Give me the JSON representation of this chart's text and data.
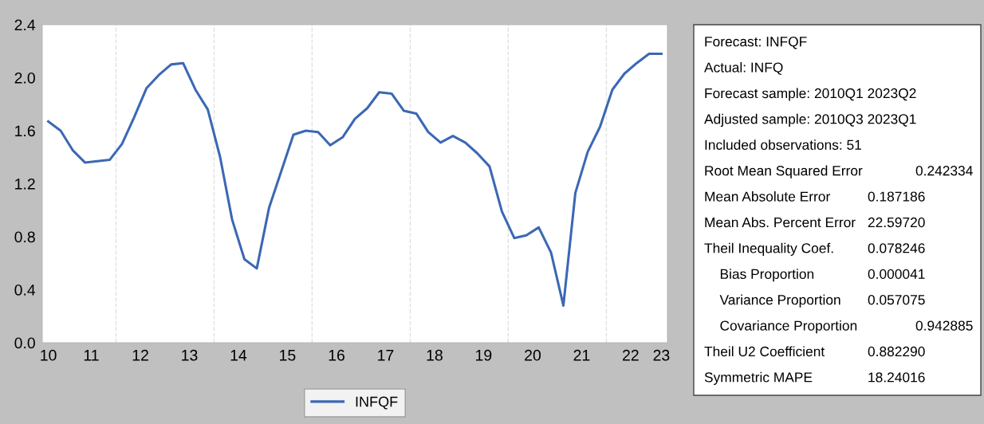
{
  "chart_data": {
    "type": "line",
    "x": [
      "2010-08-15",
      "2010-11-15",
      "2011-02-15",
      "2011-05-15",
      "2011-08-15",
      "2011-11-15",
      "2012-02-15",
      "2012-05-15",
      "2012-08-15",
      "2012-11-15",
      "2013-02-15",
      "2013-05-15",
      "2013-08-15",
      "2013-11-15",
      "2014-02-15",
      "2014-05-15",
      "2014-08-15",
      "2014-11-15",
      "2015-02-15",
      "2015-05-15",
      "2015-08-15",
      "2015-11-15",
      "2016-02-15",
      "2016-05-15",
      "2016-08-15",
      "2016-11-15",
      "2017-02-15",
      "2017-05-15",
      "2017-08-15",
      "2017-11-15",
      "2018-02-15",
      "2018-05-15",
      "2018-08-15",
      "2018-11-15",
      "2019-02-15",
      "2019-05-15",
      "2019-08-15",
      "2019-11-15",
      "2020-02-15",
      "2020-05-15",
      "2020-08-15",
      "2020-11-15",
      "2021-02-15",
      "2021-05-15",
      "2021-08-15",
      "2021-11-15",
      "2022-02-15",
      "2022-05-15",
      "2022-08-15",
      "2022-11-15",
      "2023-02-15"
    ],
    "series": [
      {
        "name": "INFQF",
        "color": "#3c68b4",
        "values": [
          1.67,
          1.6,
          1.45,
          1.36,
          1.37,
          1.38,
          1.5,
          1.7,
          1.92,
          2.02,
          2.1,
          2.11,
          1.91,
          1.76,
          1.4,
          0.93,
          0.63,
          0.56,
          1.02,
          1.29,
          1.57,
          1.6,
          1.59,
          1.49,
          1.55,
          1.69,
          1.77,
          1.89,
          1.88,
          1.75,
          1.73,
          1.59,
          1.51,
          1.56,
          1.51,
          1.43,
          1.33,
          0.99,
          0.79,
          0.81,
          0.87,
          0.68,
          0.28,
          1.13,
          1.44,
          1.63,
          1.91,
          2.03,
          2.11,
          2.18,
          2.18
        ]
      }
    ],
    "xlim": [
      "2010-07-01",
      "2023-04-01"
    ],
    "xticks": [
      {
        "value": "2010-08-15",
        "label": "10"
      },
      {
        "value": "2011-07-01",
        "label": "11"
      },
      {
        "value": "2012-07-01",
        "label": "12"
      },
      {
        "value": "2013-07-01",
        "label": "13"
      },
      {
        "value": "2014-07-01",
        "label": "14"
      },
      {
        "value": "2015-07-01",
        "label": "15"
      },
      {
        "value": "2016-07-01",
        "label": "16"
      },
      {
        "value": "2017-07-01",
        "label": "17"
      },
      {
        "value": "2018-07-01",
        "label": "18"
      },
      {
        "value": "2019-07-01",
        "label": "19"
      },
      {
        "value": "2020-07-01",
        "label": "20"
      },
      {
        "value": "2021-07-01",
        "label": "21"
      },
      {
        "value": "2022-07-01",
        "label": "22"
      },
      {
        "value": "2023-02-15",
        "label": "23"
      }
    ],
    "ylim": [
      0,
      2.4
    ],
    "yticks": [
      {
        "value": 0,
        "label": "0.0"
      },
      {
        "value": 0.4,
        "label": "0.4"
      },
      {
        "value": 0.8,
        "label": "0.8"
      },
      {
        "value": 1.2,
        "label": "1.2"
      },
      {
        "value": 1.6,
        "label": "1.6"
      },
      {
        "value": 2.0,
        "label": "2.0"
      },
      {
        "value": 2.4,
        "label": "2.4"
      }
    ],
    "ref_lines": [
      {
        "axis": "x",
        "value": "2012-01-01",
        "color": "#e0e0e0",
        "line_style": "dashed"
      },
      {
        "axis": "x",
        "value": "2014-01-01",
        "color": "#e0e0e0",
        "line_style": "dashed"
      },
      {
        "axis": "x",
        "value": "2016-01-01",
        "color": "#e0e0e0",
        "line_style": "dashed"
      },
      {
        "axis": "x",
        "value": "2018-01-01",
        "color": "#e0e0e0",
        "line_style": "dashed"
      },
      {
        "axis": "x",
        "value": "2020-01-01",
        "color": "#e0e0e0",
        "line_style": "dashed"
      },
      {
        "axis": "x",
        "value": "2022-01-01",
        "color": "#e0e0e0",
        "line_style": "dashed"
      }
    ],
    "grid": false,
    "legend": "bottom",
    "marker": "none",
    "line_style": "solid",
    "annotations": [
      "Forecast: INFQF",
      "Actual: INFQ",
      "Forecast sample: 2010Q1 2023Q2",
      "Adjusted sample: 2010Q3 2023Q1",
      "Included observations: 51",
      "Root Mean Squared Error\t0.242334",
      "Mean Absolute Error\t0.187186",
      "Mean Abs. Percent Error\t22.59720",
      "Theil Inequality Coef.\t0.078246",
      "   Bias Proportion\t0.000041",
      "   Variance Proportion\t0.057075",
      "   Covariance Proportion\t0.942885",
      "Theil U2 Coefficient\t0.882290",
      "Symmetric MAPE\t18.24016"
    ]
  }
}
